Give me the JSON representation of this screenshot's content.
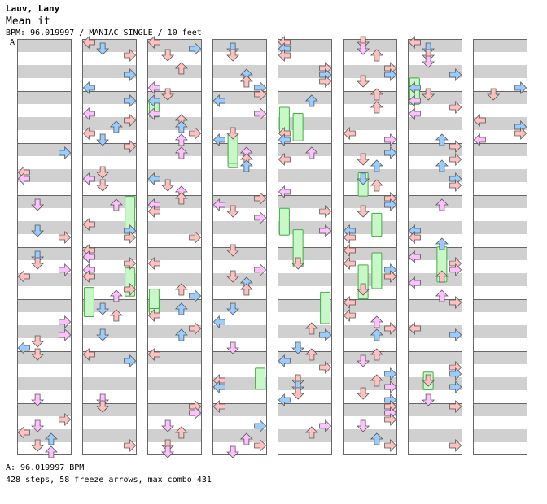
{
  "song": {
    "artist": "Lauv, Lany",
    "title": "Mean it",
    "meta_line": "BPM: 96.019997 / MANIAC SINGLE / 10 feet",
    "bpm_marker": "A",
    "bpm_footer": "A: 96.019997 BPM",
    "stats": "428 steps, 58 freeze arrows, max combo 431"
  },
  "chart": {
    "type": "step-chart",
    "columns": 8,
    "measures_per_column": 8,
    "lanes": [
      "left",
      "down",
      "up",
      "right"
    ],
    "colors": {
      "band_gray": "#d0d0d0",
      "border": "#666666",
      "freeze_fill": "#c8f8c8",
      "freeze_stroke": "#44aa44",
      "arrow_stroke": "#555555",
      "quarter": "#ffc0c0",
      "eighth": "#99ccff",
      "sixteenth": "#ffc0ff"
    }
  }
}
